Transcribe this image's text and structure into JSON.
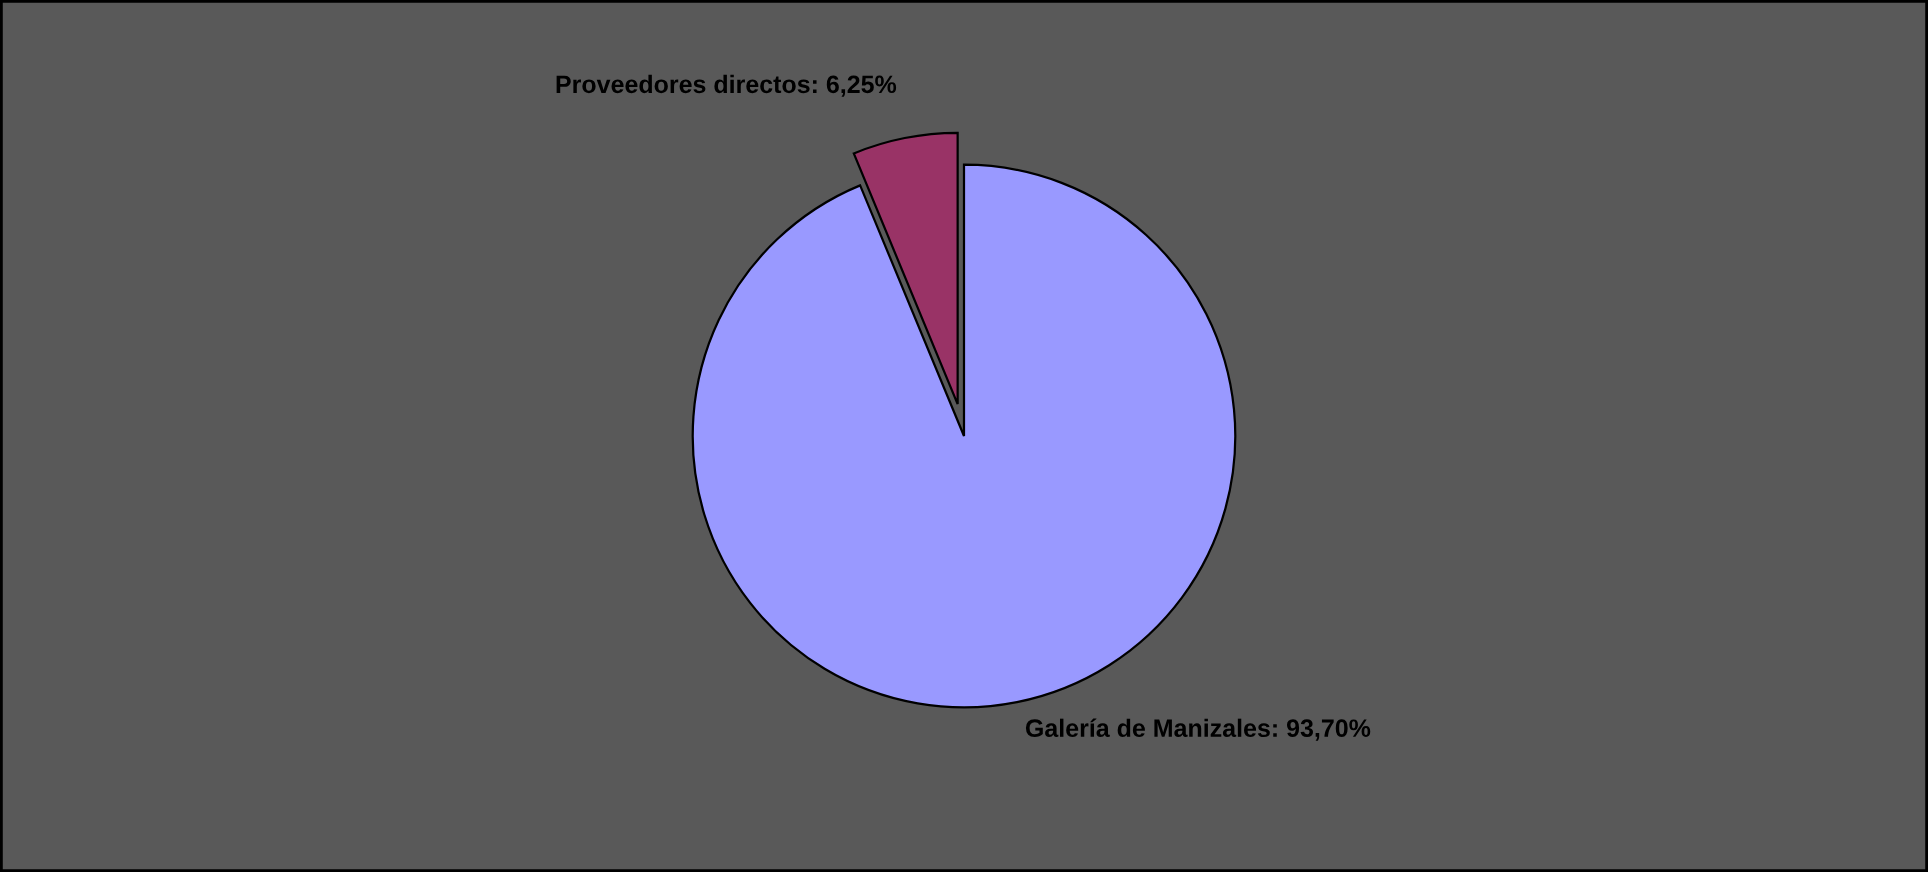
{
  "chart_data": {
    "type": "pie",
    "categories": [
      "Galería de Manizales",
      "Proveedores directos"
    ],
    "values": [
      93.7,
      6.25
    ],
    "value_labels": [
      "93,70%",
      "6,25%"
    ],
    "colors": [
      "#9999ff",
      "#993366"
    ],
    "legend": false
  }
}
